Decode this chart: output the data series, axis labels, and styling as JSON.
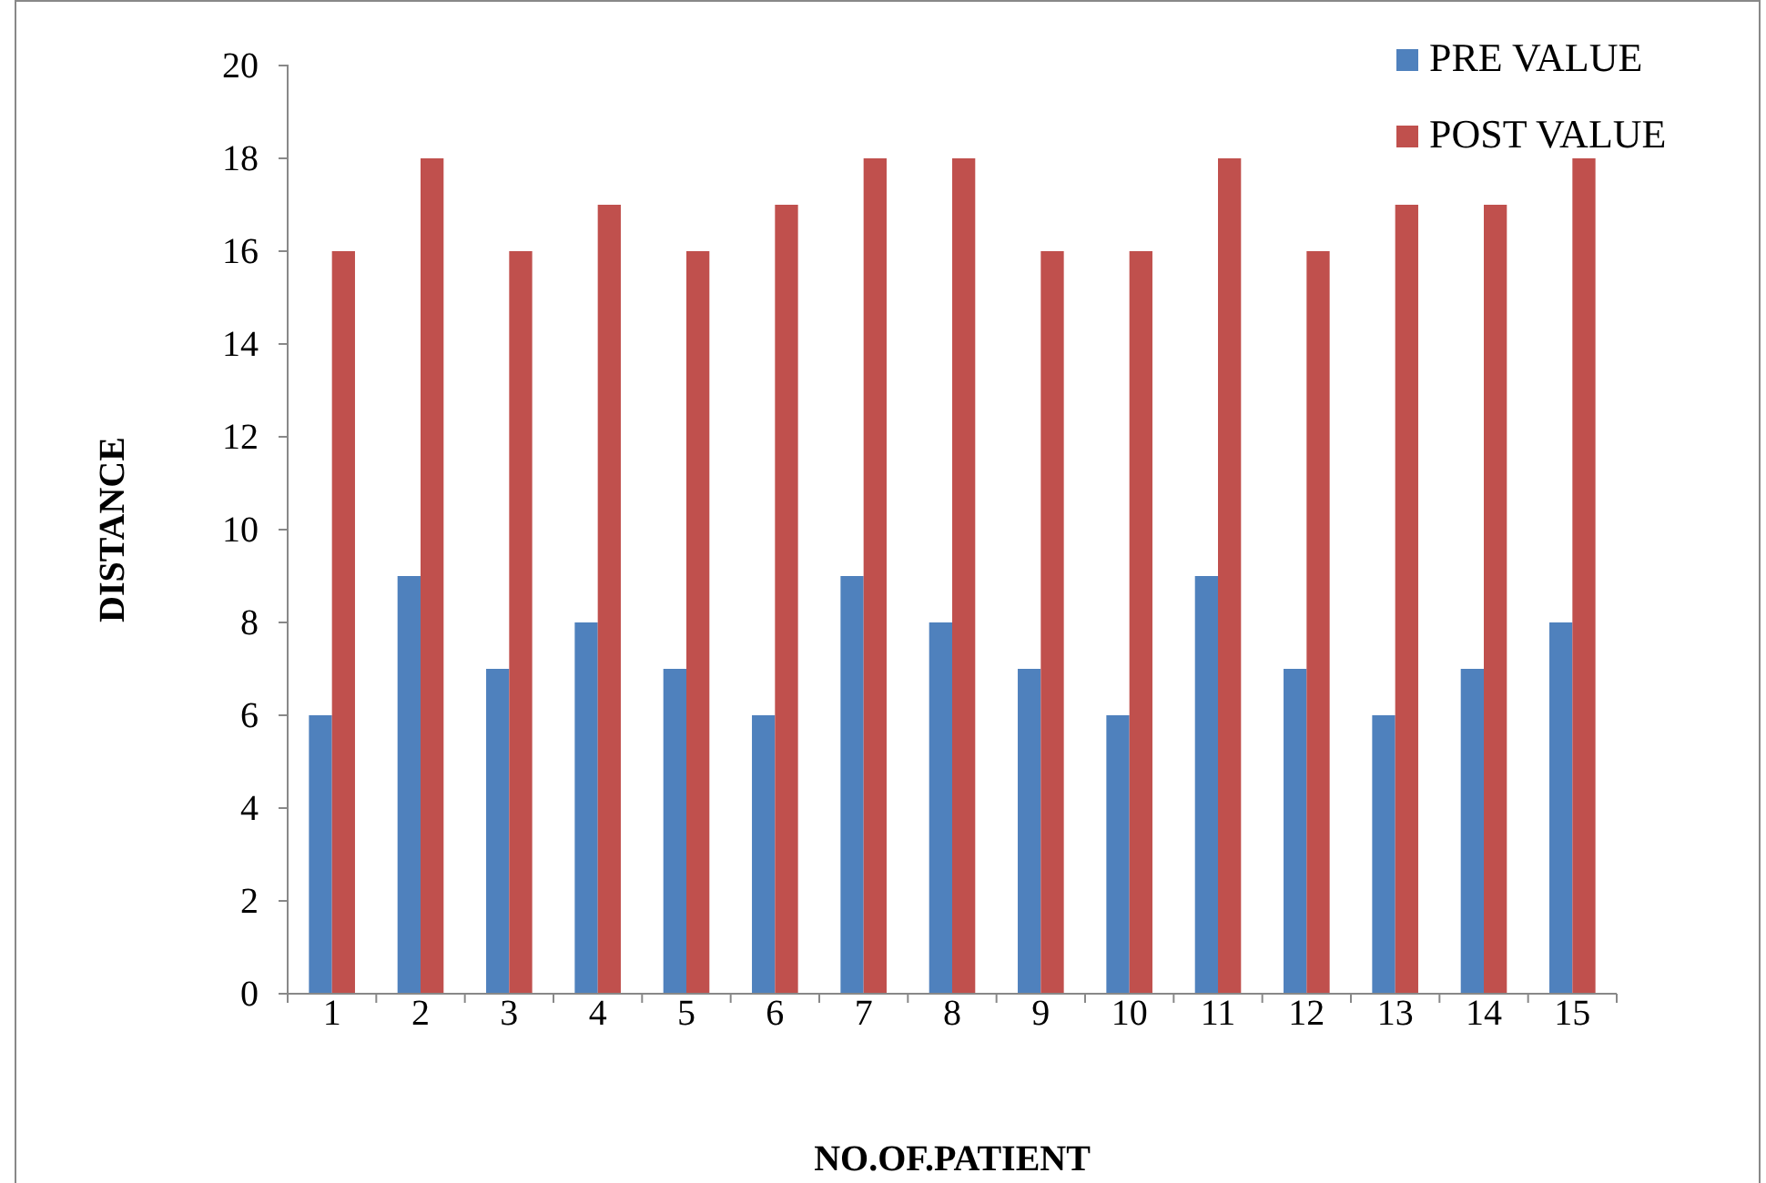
{
  "chart_data": {
    "type": "bar",
    "xlabel": "NO.OF.PATIENT",
    "ylabel": "DISTANCE",
    "categories": [
      "1",
      "2",
      "3",
      "4",
      "5",
      "6",
      "7",
      "8",
      "9",
      "10",
      "11",
      "12",
      "13",
      "14",
      "15"
    ],
    "series": [
      {
        "name": "PRE VALUE",
        "color": "#4f81bd",
        "values": [
          6,
          9,
          7,
          8,
          7,
          6,
          9,
          8,
          7,
          6,
          9,
          7,
          6,
          7,
          8
        ]
      },
      {
        "name": "POST VALUE",
        "color": "#c0504d",
        "values": [
          16,
          18,
          16,
          17,
          16,
          17,
          18,
          18,
          16,
          16,
          18,
          16,
          17,
          17,
          18
        ]
      }
    ],
    "ylim": [
      0,
      20
    ],
    "yticks": [
      0,
      2,
      4,
      6,
      8,
      10,
      12,
      14,
      16,
      18,
      20
    ],
    "grid": false,
    "legend": "top right"
  }
}
